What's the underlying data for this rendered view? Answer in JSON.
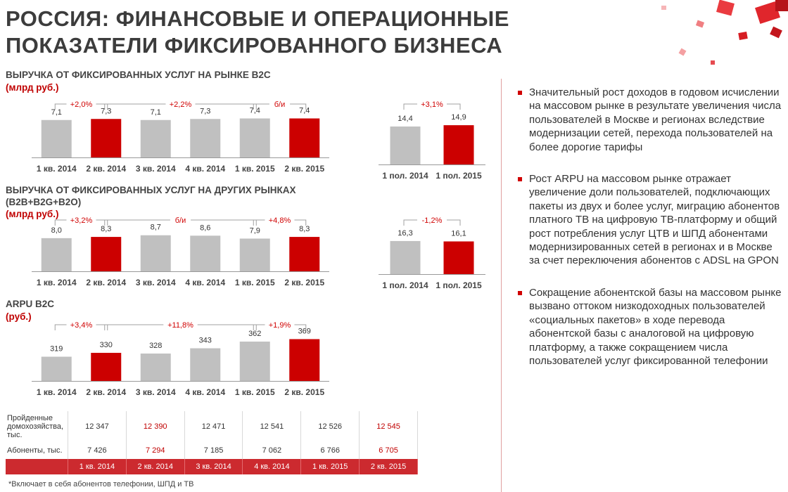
{
  "title": {
    "line1": "РОССИЯ:  ФИНАНСОВЫЕ И ОПЕРАЦИОННЫЕ",
    "line2": "ПОКАЗАТЕЛИ ФИКСИРОВАННОГО БИЗНЕСА"
  },
  "colors": {
    "accent": "#cc0000",
    "bar_grey": "#c0c0c0",
    "bar_red": "#cc0000",
    "text_red": "#d00000"
  },
  "sections": [
    {
      "title": "ВЫРУЧКА ОТ ФИКСИРОВАННЫХ УСЛУГ НА РЫНКЕ B2C",
      "title2": "",
      "unit": "(млрд руб.)"
    },
    {
      "title": "ВЫРУЧКА ОТ ФИКСИРОВАННЫХ УСЛУГ НА ДРУГИХ РЫНКАХ",
      "title2": "(B2B+B2G+B2O)",
      "unit": "(млрд руб.)"
    },
    {
      "title": "ARPU B2C",
      "title2": "",
      "unit": "(руб.)"
    }
  ],
  "chart_data": [
    {
      "type": "bar",
      "categories": [
        "1 кв. 2014",
        "2 кв. 2014",
        "3 кв. 2014",
        "4 кв. 2014",
        "1 кв. 2015",
        "2 кв. 2015"
      ],
      "values": [
        7.1,
        7.3,
        7.1,
        7.3,
        7.4,
        7.4
      ],
      "value_labels": [
        "7,1",
        "7,3",
        "7,1",
        "7,3",
        "7,4",
        "7,4"
      ],
      "highlighted": [
        false,
        true,
        false,
        false,
        false,
        true
      ],
      "annotations": [
        {
          "text": "+2,0%",
          "from": 0,
          "to": 1
        },
        {
          "text": "+2,2%",
          "from": 1,
          "to": 4
        },
        {
          "text": "б/и",
          "from": 4,
          "to": 5
        }
      ],
      "ylim": [
        0,
        8
      ]
    },
    {
      "type": "bar",
      "categories": [
        "1 пол. 2014",
        "1 пол. 2015"
      ],
      "values": [
        14.4,
        14.9
      ],
      "value_labels": [
        "14,4",
        "14,9"
      ],
      "highlighted": [
        false,
        true
      ],
      "annotations": [
        {
          "text": "+3,1%",
          "from": 0,
          "to": 1
        }
      ],
      "ylim": [
        0,
        16
      ]
    },
    {
      "type": "bar",
      "categories": [
        "1 кв. 2014",
        "2 кв. 2014",
        "3 кв. 2014",
        "4 кв. 2014",
        "1 кв. 2015",
        "2 кв. 2015"
      ],
      "values": [
        8.0,
        8.3,
        8.7,
        8.6,
        7.9,
        8.3
      ],
      "value_labels": [
        "8,0",
        "8,3",
        "8,7",
        "8,6",
        "7,9",
        "8,3"
      ],
      "highlighted": [
        false,
        true,
        false,
        false,
        false,
        true
      ],
      "annotations": [
        {
          "text": "+3,2%",
          "from": 0,
          "to": 1
        },
        {
          "text": "б/и",
          "from": 1,
          "to": 4
        },
        {
          "text": "+4,8%",
          "from": 4,
          "to": 5
        }
      ],
      "ylim": [
        0,
        9.5
      ]
    },
    {
      "type": "bar",
      "categories": [
        "1 пол. 2014",
        "1 пол. 2015"
      ],
      "values": [
        16.3,
        16.1
      ],
      "value_labels": [
        "16,3",
        "16,1"
      ],
      "highlighted": [
        false,
        true
      ],
      "annotations": [
        {
          "text": "-1,2%",
          "from": 0,
          "to": 1
        }
      ],
      "ylim": [
        0,
        18
      ]
    },
    {
      "type": "bar",
      "categories": [
        "1 кв. 2014",
        "2 кв. 2014",
        "3 кв. 2014",
        "4 кв. 2014",
        "1 кв. 2015",
        "2 кв. 2015"
      ],
      "values": [
        319,
        330,
        328,
        343,
        362,
        369
      ],
      "value_labels": [
        "319",
        "330",
        "328",
        "343",
        "362",
        "369"
      ],
      "highlighted": [
        false,
        true,
        false,
        false,
        false,
        true
      ],
      "annotations": [
        {
          "text": "+3,4%",
          "from": 0,
          "to": 1
        },
        {
          "text": "+11,8%",
          "from": 1,
          "to": 4
        },
        {
          "text": "+1,9%",
          "from": 4,
          "to": 5
        }
      ],
      "ylim": [
        250,
        380
      ]
    }
  ],
  "table": {
    "rows": [
      {
        "label": "Пройденные домохозяйства, тыс.",
        "values": [
          "12 347",
          "12 390",
          "12 471",
          "12 541",
          "12 526",
          "12 545"
        ]
      },
      {
        "label": "Абоненты, тыс.",
        "values": [
          "7 426",
          "7 294",
          "7 185",
          "7 062",
          "6 766",
          "6 705"
        ]
      }
    ],
    "highlighted_columns": [
      1,
      5
    ],
    "header": [
      "1 кв. 2014",
      "2 кв. 2014",
      "3 кв. 2014",
      "4 кв. 2014",
      "1 кв. 2015",
      "2 кв. 2015"
    ]
  },
  "footnote": "*Включает в себя абонентов телефонии, ШПД и ТВ",
  "bullets": [
    "Значительный рост доходов в годовом исчислении на массовом рынке в результате увеличения числа пользователей в Москве и регионах вследствие модернизации сетей, перехода пользователей на более дорогие тарифы",
    "Рост ARPU на массовом рынке отражает увеличение доли пользователей, подключающих пакеты из двух и более услуг, миграцию абонентов платного ТВ на цифровую ТВ-платформу и общий рост потребления услуг ЦТВ и ШПД абонентами модернизированных сетей в регионах и в Москве за счет переключения абонентов с ADSL на GPON",
    "Сокращение абонентской базы на массовом рынке вызвано оттоком низкодоходных пользователей «социальных пакетов» в ходе перевода абонентской базы с аналоговой на цифровую платформу, а также сокращением числа пользователей услуг фиксированной телефонии"
  ]
}
